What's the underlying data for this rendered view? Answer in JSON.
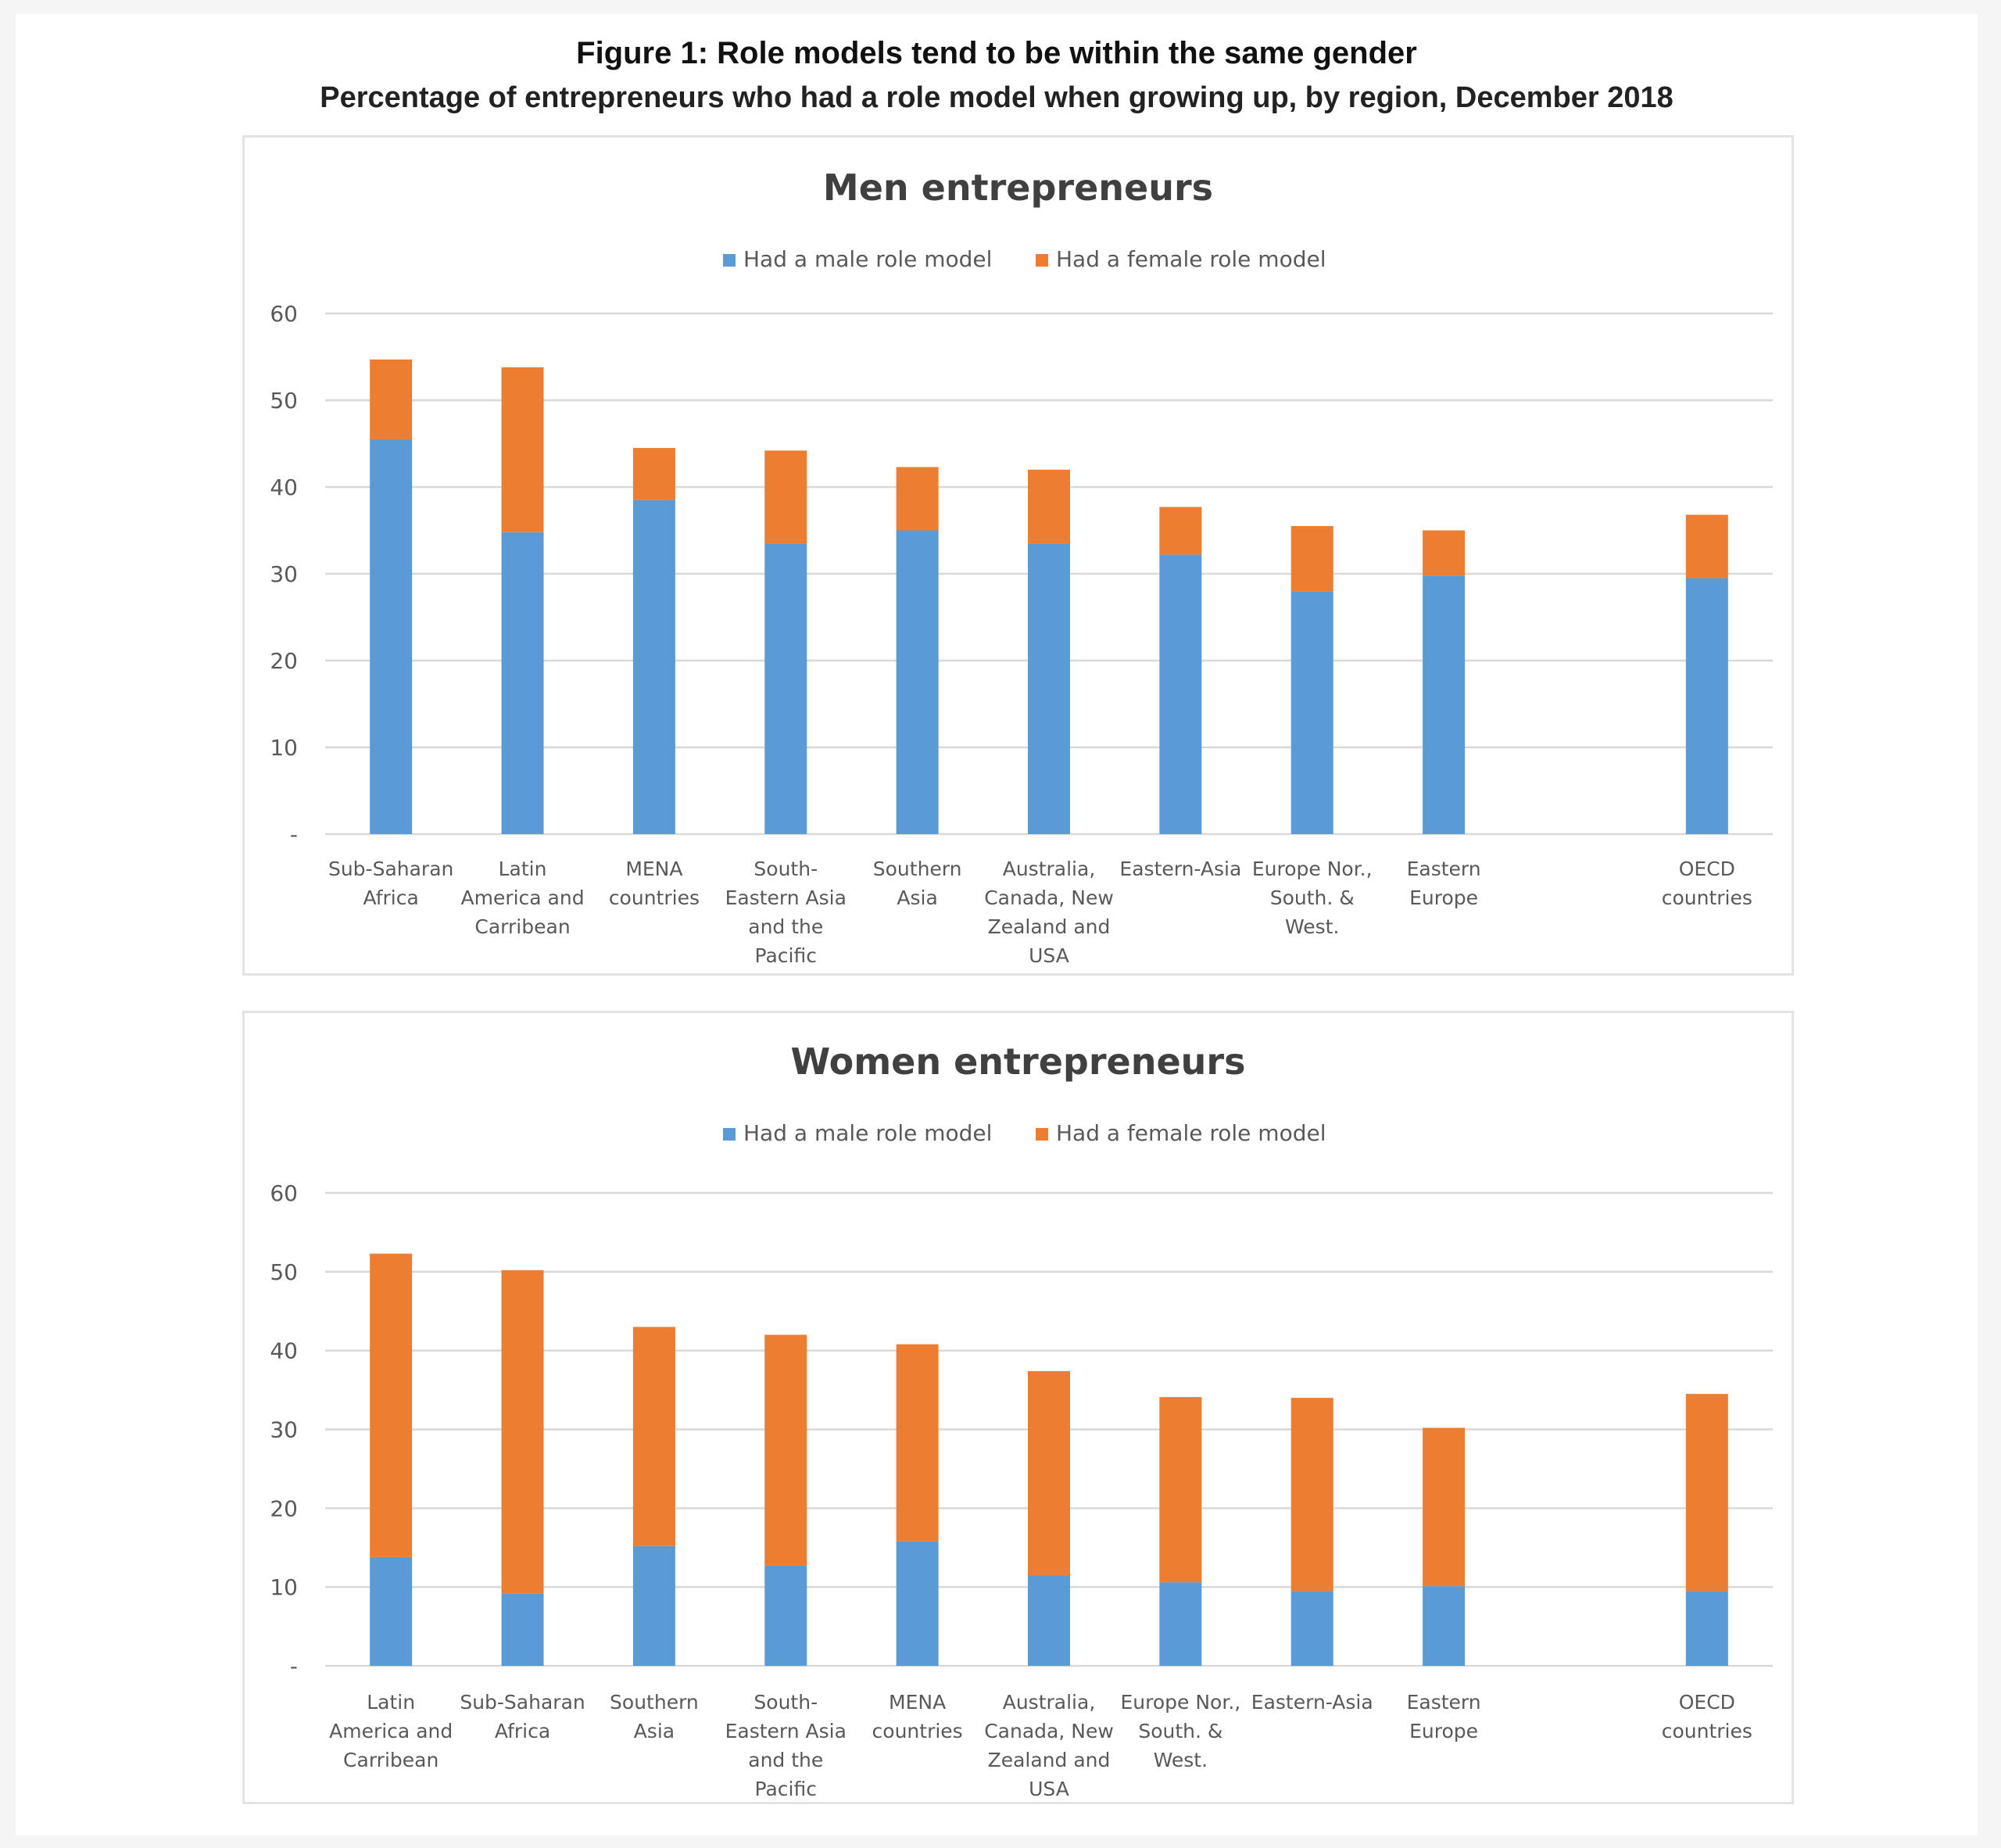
{
  "figure": {
    "title": "Figure 1: Role models tend to be within the same gender",
    "subtitle": "Percentage of entrepreneurs who had a role model when growing up, by region, December 2018"
  },
  "colors": {
    "male": "#5b9bd5",
    "female": "#ed7d31",
    "grid": "#d9d9d9",
    "axis_text": "#595959",
    "title_text": "#404040"
  },
  "chart_data": [
    {
      "type": "bar",
      "stacked": true,
      "title": "Men entrepreneurs",
      "legend_position": "top",
      "grid": true,
      "ylim": [
        0,
        60
      ],
      "yticks": [
        "-",
        "10",
        "20",
        "30",
        "40",
        "50",
        "60"
      ],
      "categories": [
        [
          "Sub-Saharan",
          "Africa"
        ],
        [
          "Latin",
          "America and",
          "Carribean"
        ],
        [
          "MENA",
          "countries"
        ],
        [
          "South-",
          "Eastern Asia",
          "and the",
          "Pacific"
        ],
        [
          "Southern",
          "Asia"
        ],
        [
          "Australia,",
          "Canada, New",
          "Zealand and",
          "USA"
        ],
        [
          "Eastern-Asia"
        ],
        [
          "Europe Nor.,",
          "South. &",
          "West."
        ],
        [
          "Eastern",
          "Europe"
        ],
        [
          "OECD",
          "countries"
        ]
      ],
      "series": [
        {
          "name": "Had a male role model",
          "values": [
            45.5,
            34.8,
            38.5,
            33.5,
            35,
            33.5,
            32.2,
            28,
            29.8,
            29.5
          ]
        },
        {
          "name": "Had a female role model",
          "values": [
            9.2,
            19,
            6,
            10.7,
            7.3,
            8.5,
            5.5,
            7.5,
            5.2,
            7.3
          ]
        }
      ]
    },
    {
      "type": "bar",
      "stacked": true,
      "title": "Women entrepreneurs",
      "legend_position": "top",
      "grid": true,
      "ylim": [
        0,
        60
      ],
      "yticks": [
        "-",
        "10",
        "20",
        "30",
        "40",
        "50",
        "60"
      ],
      "categories": [
        [
          "Latin",
          "America and",
          "Carribean"
        ],
        [
          "Sub-Saharan",
          "Africa"
        ],
        [
          "Southern",
          "Asia"
        ],
        [
          "South-",
          "Eastern Asia",
          "and the",
          "Pacific"
        ],
        [
          "MENA",
          "countries"
        ],
        [
          "Australia,",
          "Canada, New",
          "Zealand and",
          "USA"
        ],
        [
          "Europe Nor.,",
          "South. &",
          "West."
        ],
        [
          "Eastern-Asia"
        ],
        [
          "Eastern",
          "Europe"
        ],
        [
          "OECD",
          "countries"
        ]
      ],
      "series": [
        {
          "name": "Had a male role model",
          "values": [
            13.8,
            9.2,
            15.2,
            12.7,
            15.8,
            11.5,
            10.6,
            9.5,
            10.1,
            9.5
          ]
        },
        {
          "name": "Had a female role model",
          "values": [
            38.5,
            41,
            27.8,
            29.3,
            25,
            25.9,
            23.5,
            24.5,
            20.1,
            25
          ]
        }
      ]
    }
  ]
}
